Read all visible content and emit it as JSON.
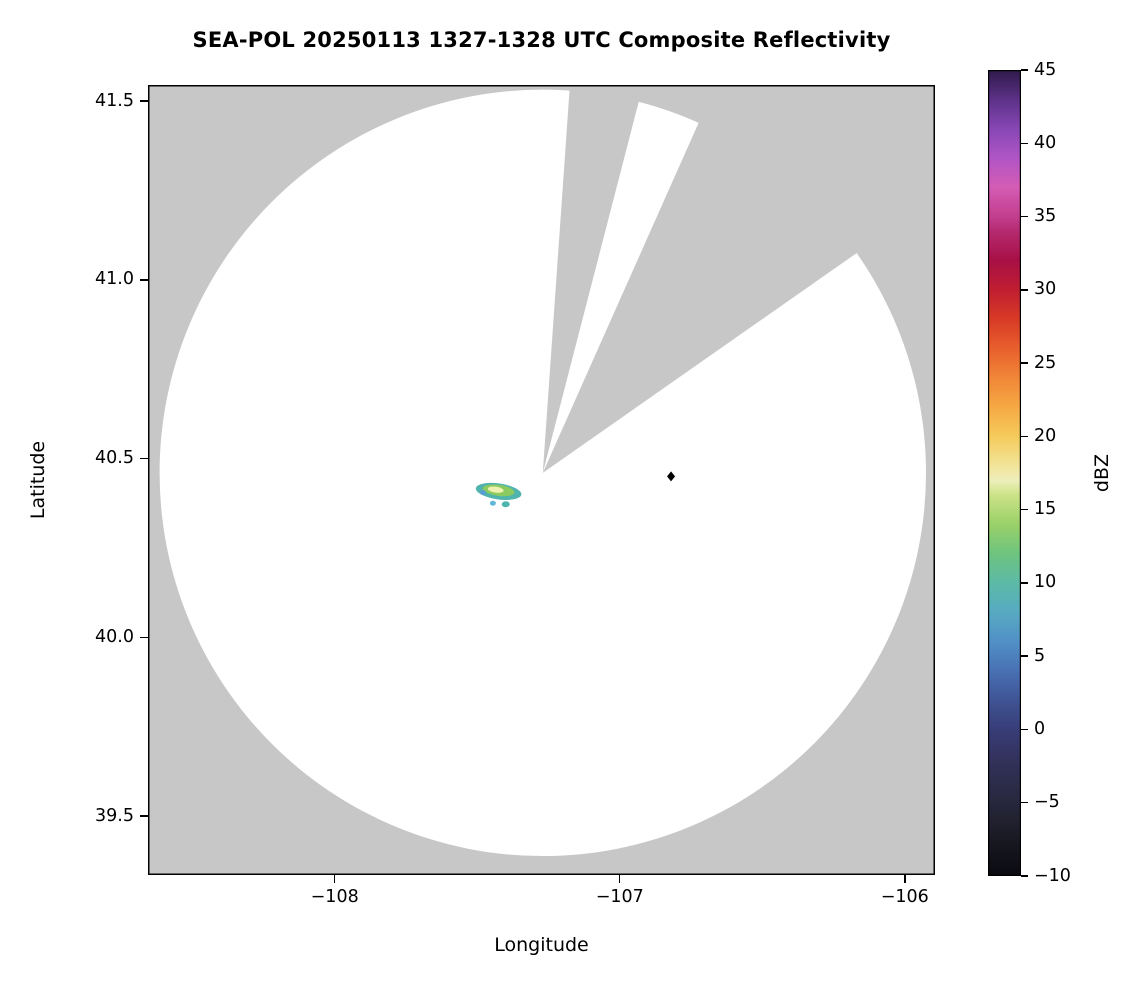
{
  "chart_data": {
    "type": "heatmap",
    "title": "SEA-POL 20250113 1327-1328 UTC Composite Reflectivity",
    "xlabel": "Longitude",
    "ylabel": "Latitude",
    "xlim": [
      -108.655,
      -105.894
    ],
    "ylim": [
      39.335,
      41.545
    ],
    "x_ticks": [
      -108,
      -107,
      -106
    ],
    "x_tick_labels": [
      "−108",
      "−107",
      "−106"
    ],
    "y_ticks": [
      41.5,
      41.0,
      40.5,
      40.0,
      39.5
    ],
    "y_tick_labels": [
      "41.5",
      "41.0",
      "40.5",
      "40.0",
      "39.5"
    ],
    "grid": false,
    "colors": {
      "masked": "#c7c7c7",
      "coverage": "#ffffff",
      "frame": "#000000"
    },
    "radar": {
      "center_lon": -107.27,
      "center_lat": 40.46,
      "radius_deg_lat": 1.072,
      "blocked_sectors_azimuth_deg": [
        [
          4,
          14.5
        ],
        [
          24,
          55
        ]
      ]
    },
    "echoes": [
      {
        "lon": -107.425,
        "lat": 40.408,
        "rx": 23,
        "ry": 8,
        "rot": 8,
        "color": "#4fb3ae"
      },
      {
        "lon": -107.425,
        "lat": 40.411,
        "rx": 16,
        "ry": 5.5,
        "rot": 8,
        "color": "#8bca5f"
      },
      {
        "lon": -107.435,
        "lat": 40.413,
        "rx": 8,
        "ry": 3,
        "rot": 8,
        "color": "#eef0b0"
      },
      {
        "lon": -107.48,
        "lat": 40.405,
        "rx": 3,
        "ry": 2.5,
        "rot": 0,
        "color": "#5a9fd4"
      },
      {
        "lon": -107.4,
        "lat": 40.372,
        "rx": 4,
        "ry": 3,
        "rot": 0,
        "color": "#4fb3ae"
      },
      {
        "lon": -107.445,
        "lat": 40.375,
        "rx": 3,
        "ry": 2.5,
        "rot": 0,
        "color": "#62b8d8"
      },
      {
        "lon": -107.355,
        "lat": 40.4,
        "rx": 2.5,
        "ry": 2,
        "rot": 0,
        "color": "#4fb3ae"
      }
    ],
    "marker": {
      "lon": -106.82,
      "lat": 40.45,
      "shape": "diamond",
      "color": "#000000"
    },
    "colorbar": {
      "label": "dBZ",
      "min": -10,
      "max": 45,
      "ticks": [
        45,
        40,
        35,
        30,
        25,
        20,
        15,
        10,
        5,
        0,
        -5,
        -10
      ],
      "tick_labels": [
        "45",
        "40",
        "35",
        "30",
        "25",
        "20",
        "15",
        "10",
        "5",
        "0",
        "−5",
        "−10"
      ],
      "stops": [
        {
          "value": -10,
          "color": "#0a0a10"
        },
        {
          "value": -8,
          "color": "#16161f"
        },
        {
          "value": -6,
          "color": "#222232"
        },
        {
          "value": -4,
          "color": "#2b2b47"
        },
        {
          "value": -2,
          "color": "#32325c"
        },
        {
          "value": 0,
          "color": "#383d77"
        },
        {
          "value": 2,
          "color": "#3f5494"
        },
        {
          "value": 4,
          "color": "#4871b4"
        },
        {
          "value": 6,
          "color": "#5190c6"
        },
        {
          "value": 8,
          "color": "#57aac2"
        },
        {
          "value": 10,
          "color": "#5cbaa6"
        },
        {
          "value": 12,
          "color": "#6ec47e"
        },
        {
          "value": 14,
          "color": "#9ad168"
        },
        {
          "value": 16,
          "color": "#cce387"
        },
        {
          "value": 17,
          "color": "#eeeebc"
        },
        {
          "value": 18,
          "color": "#f2e49a"
        },
        {
          "value": 20,
          "color": "#f5cb5b"
        },
        {
          "value": 22,
          "color": "#f5a944"
        },
        {
          "value": 24,
          "color": "#f18638"
        },
        {
          "value": 26,
          "color": "#e85f2d"
        },
        {
          "value": 28,
          "color": "#d83a26"
        },
        {
          "value": 30,
          "color": "#c01e31"
        },
        {
          "value": 32,
          "color": "#a81045"
        },
        {
          "value": 34,
          "color": "#b52a70"
        },
        {
          "value": 35,
          "color": "#c23e8e"
        },
        {
          "value": 37,
          "color": "#d45cb4"
        },
        {
          "value": 39,
          "color": "#b055c6"
        },
        {
          "value": 41,
          "color": "#8747b4"
        },
        {
          "value": 43,
          "color": "#5c3187"
        },
        {
          "value": 45,
          "color": "#2e1a4a"
        }
      ]
    }
  }
}
